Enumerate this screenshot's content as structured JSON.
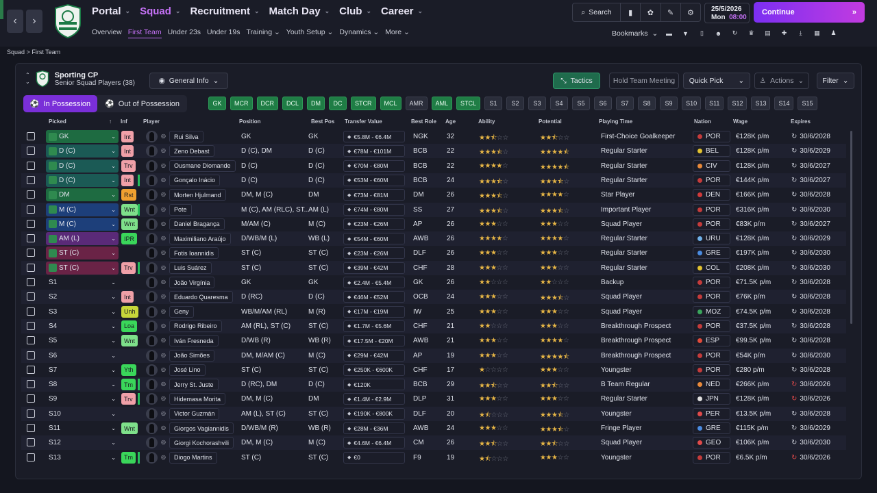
{
  "topnav": {
    "back": "‹",
    "forward": "›",
    "items": [
      {
        "label": "Portal"
      },
      {
        "label": "Squad"
      },
      {
        "label": "Recruitment"
      },
      {
        "label": "Match Day"
      },
      {
        "label": "Club"
      },
      {
        "label": "Career"
      }
    ],
    "subitems": [
      "Overview",
      "First Team",
      "Under 23s",
      "Under 19s",
      "Training",
      "Youth Setup",
      "Dynamics",
      "More"
    ],
    "search_label": "Search",
    "date": "25/5/2026",
    "day": "Mon",
    "time": "08:00",
    "continue_label": "Continue",
    "bookmarks_label": "Bookmarks"
  },
  "breadcrumb": {
    "a": "Squad",
    "sep": ">",
    "b": "First Team"
  },
  "panel": {
    "club_name": "Sporting CP",
    "subtitle": "Senior Squad Players (38)",
    "view_label": "General Info",
    "tactics_label": "Tactics",
    "meeting_label": "Hold Team Meeting",
    "quickpick_label": "Quick Pick",
    "actions_label": "Actions",
    "filter_label": "Filter",
    "in_possession": "In Possession",
    "out_possession": "Out of Possession",
    "position_chips": [
      {
        "label": "GK",
        "filled": true
      },
      {
        "label": "MCR",
        "filled": true
      },
      {
        "label": "DCR",
        "filled": true
      },
      {
        "label": "DCL",
        "filled": true
      },
      {
        "label": "DM",
        "filled": true
      },
      {
        "label": "DC",
        "filled": true
      },
      {
        "label": "STCR",
        "filled": true
      },
      {
        "label": "MCL",
        "filled": true
      },
      {
        "label": "AMR",
        "filled": false
      },
      {
        "label": "AML",
        "filled": true
      },
      {
        "label": "STCL",
        "filled": true
      },
      {
        "label": "S1",
        "filled": false
      },
      {
        "label": "S2",
        "filled": false
      },
      {
        "label": "S3",
        "filled": false
      },
      {
        "label": "S4",
        "filled": false
      },
      {
        "label": "S5",
        "filled": false
      },
      {
        "label": "S6",
        "filled": false
      },
      {
        "label": "S7",
        "filled": false
      },
      {
        "label": "S8",
        "filled": false
      },
      {
        "label": "S9",
        "filled": false
      },
      {
        "label": "S10",
        "filled": false
      },
      {
        "label": "S11",
        "filled": false
      },
      {
        "label": "S12",
        "filled": false
      },
      {
        "label": "S13",
        "filled": false
      },
      {
        "label": "S14",
        "filled": false
      },
      {
        "label": "S15",
        "filled": false
      }
    ]
  },
  "columns": {
    "picked": "Picked",
    "inf": "Inf",
    "player": "Player",
    "position": "Position",
    "best_pos": "Best Pos",
    "transfer_value": "Transfer Value",
    "best_role": "Best Role",
    "age": "Age",
    "ability": "Ability",
    "potential": "Potential",
    "playing_time": "Playing Time",
    "nation": "Nation",
    "wage": "Wage",
    "expires": "Expires"
  },
  "colors": {
    "accent": "#c471f5",
    "green": "#1f7d45",
    "purple": "#7a2fd8"
  },
  "players": [
    {
      "picked": "GK",
      "sel": "green",
      "inf": "Int",
      "inf_color": "#f0a0a8",
      "bar": false,
      "name": "Rui Silva",
      "position": "GK",
      "best_pos": "GK",
      "value": "€5.8M - €6.4M",
      "role": "NGK",
      "age": "32",
      "ability": 2.5,
      "potential": 2.5,
      "time": "First-Choice Goalkeeper",
      "nation": "POR",
      "nat_color": "#c43b3b",
      "wage": "€128K p/m",
      "expires": "30/6/2028",
      "exp_red": false
    },
    {
      "picked": "D (C)",
      "sel": "teal",
      "inf": "Int",
      "inf_color": "#f0a0a8",
      "bar": false,
      "name": "Zeno Debast",
      "position": "D (C), DM",
      "best_pos": "D (C)",
      "value": "€78M - €101M",
      "role": "BCB",
      "age": "22",
      "ability": 3.5,
      "potential": 4.5,
      "time": "Regular Starter",
      "nation": "BEL",
      "nat_color": "#e2c230",
      "wage": "€128K p/m",
      "expires": "30/6/2029",
      "exp_red": false
    },
    {
      "picked": "D (C)",
      "sel": "teal",
      "inf": "Trv",
      "inf_color": "#f0a0a8",
      "bar": false,
      "name": "Ousmane Diomande",
      "position": "D (C)",
      "best_pos": "D (C)",
      "value": "€70M - €80M",
      "role": "BCB",
      "age": "22",
      "ability": 4,
      "potential": 4.5,
      "time": "Regular Starter",
      "nation": "CIV",
      "nat_color": "#e8893a",
      "wage": "€128K p/m",
      "expires": "30/6/2027",
      "exp_red": false
    },
    {
      "picked": "D (C)",
      "sel": "teal",
      "inf": "Int",
      "inf_color": "#f0a0a8",
      "bar": true,
      "name": "Gonçalo Inácio",
      "position": "D (C)",
      "best_pos": "D (C)",
      "value": "€53M - €60M",
      "role": "BCB",
      "age": "24",
      "ability": 3.5,
      "potential": 3.5,
      "time": "Regular Starter",
      "nation": "POR",
      "nat_color": "#c43b3b",
      "wage": "€144K p/m",
      "expires": "30/6/2027",
      "exp_red": false
    },
    {
      "picked": "DM",
      "sel": "green",
      "inf": "Rst",
      "inf_color": "#f0a030",
      "bar": false,
      "name": "Morten Hjulmand",
      "position": "DM, M (C)",
      "best_pos": "DM",
      "value": "€73M - €81M",
      "role": "DM",
      "age": "26",
      "ability": 3.5,
      "potential": 4,
      "time": "Star Player",
      "nation": "DEN",
      "nat_color": "#d13a3a",
      "wage": "€166K p/m",
      "expires": "30/6/2028",
      "exp_red": false
    },
    {
      "picked": "M (C)",
      "sel": "blue",
      "inf": "Wnt",
      "inf_color": "#7ee08a",
      "bar": true,
      "name": "Pote",
      "position": "M (C), AM (RLC), ST...",
      "best_pos": "AM (L)",
      "value": "€74M - €80M",
      "role": "SS",
      "age": "27",
      "ability": 3.5,
      "potential": 3.5,
      "time": "Important Player",
      "nation": "POR",
      "nat_color": "#c43b3b",
      "wage": "€316K p/m",
      "expires": "30/6/2030",
      "exp_red": false
    },
    {
      "picked": "M (C)",
      "sel": "blue",
      "inf": "Wnt",
      "inf_color": "#7ee08a",
      "bar": false,
      "name": "Daniel Bragança",
      "position": "M/AM (C)",
      "best_pos": "M (C)",
      "value": "€23M - €26M",
      "role": "AP",
      "age": "26",
      "ability": 3,
      "potential": 3,
      "time": "Squad Player",
      "nation": "POR",
      "nat_color": "#c43b3b",
      "wage": "€83K p/m",
      "expires": "30/6/2027",
      "exp_red": false
    },
    {
      "picked": "AM (L)",
      "sel": "purple",
      "inf": "IPR",
      "inf_color": "#3ad65a",
      "bar": false,
      "name": "Maximiliano Araújo",
      "position": "D/WB/M (L)",
      "best_pos": "WB (L)",
      "value": "€54M - €60M",
      "role": "AWB",
      "age": "26",
      "ability": 4,
      "potential": 4,
      "time": "Regular Starter",
      "nation": "URU",
      "nat_color": "#6fb0e8",
      "wage": "€128K p/m",
      "expires": "30/6/2029",
      "exp_red": false
    },
    {
      "picked": "ST (C)",
      "sel": "red",
      "inf": "",
      "inf_color": "",
      "bar": false,
      "name": "Fotis Ioannidis",
      "position": "ST (C)",
      "best_pos": "ST (C)",
      "value": "€23M - €26M",
      "role": "DLF",
      "age": "26",
      "ability": 3,
      "potential": 3,
      "time": "Regular Starter",
      "nation": "GRE",
      "nat_color": "#4a8be0",
      "wage": "€197K p/m",
      "expires": "30/6/2030",
      "exp_red": false
    },
    {
      "picked": "ST (C)",
      "sel": "red",
      "inf": "Trv",
      "inf_color": "#f0a0a8",
      "bar": true,
      "name": "Luis Suárez",
      "position": "ST (C)",
      "best_pos": "ST (C)",
      "value": "€39M - €42M",
      "role": "CHF",
      "age": "28",
      "ability": 3,
      "potential": 3,
      "time": "Regular Starter",
      "nation": "COL",
      "nat_color": "#e2c230",
      "wage": "€208K p/m",
      "expires": "30/6/2030",
      "exp_red": false
    },
    {
      "picked": "S1",
      "sel": "none",
      "inf": "",
      "inf_color": "",
      "bar": false,
      "name": "João Virgínia",
      "position": "GK",
      "best_pos": "GK",
      "value": "€2.4M - €5.4M",
      "role": "GK",
      "age": "26",
      "ability": 2,
      "potential": 2,
      "time": "Backup",
      "nation": "POR",
      "nat_color": "#c43b3b",
      "wage": "€71.5K p/m",
      "expires": "30/6/2028",
      "exp_red": false
    },
    {
      "picked": "S2",
      "sel": "none",
      "inf": "Int",
      "inf_color": "#f0a0a8",
      "bar": false,
      "name": "Eduardo Quaresma",
      "position": "D (RC)",
      "best_pos": "D (C)",
      "value": "€46M - €52M",
      "role": "OCB",
      "age": "24",
      "ability": 3,
      "potential": 3.5,
      "time": "Squad Player",
      "nation": "POR",
      "nat_color": "#c43b3b",
      "wage": "€76K p/m",
      "expires": "30/6/2028",
      "exp_red": false
    },
    {
      "picked": "S3",
      "sel": "none",
      "inf": "Unh",
      "inf_color": "#c7d63a",
      "bar": false,
      "name": "Geny",
      "position": "WB/M/AM (RL)",
      "best_pos": "M (R)",
      "value": "€17M - €19M",
      "role": "IW",
      "age": "25",
      "ability": 3,
      "potential": 3,
      "time": "Squad Player",
      "nation": "MOZ",
      "nat_color": "#3aa55c",
      "wage": "€74.5K p/m",
      "expires": "30/6/2028",
      "exp_red": false
    },
    {
      "picked": "S4",
      "sel": "none",
      "inf": "Loa",
      "inf_color": "#3ad65a",
      "bar": false,
      "name": "Rodrigo Ribeiro",
      "position": "AM (RL), ST (C)",
      "best_pos": "ST (C)",
      "value": "€1.7M - €5.6M",
      "role": "CHF",
      "age": "21",
      "ability": 2,
      "potential": 3,
      "time": "Breakthrough Prospect",
      "nation": "POR",
      "nat_color": "#c43b3b",
      "wage": "€37.5K p/m",
      "expires": "30/6/2028",
      "exp_red": false
    },
    {
      "picked": "S5",
      "sel": "none",
      "inf": "Wnt",
      "inf_color": "#7ee08a",
      "bar": false,
      "name": "Iván Fresneda",
      "position": "D/WB (R)",
      "best_pos": "WB (R)",
      "value": "€17.5M - €20M",
      "role": "AWB",
      "age": "21",
      "ability": 3,
      "potential": 4,
      "time": "Breakthrough Prospect",
      "nation": "ESP",
      "nat_color": "#e04a3a",
      "wage": "€99.5K p/m",
      "expires": "30/6/2028",
      "exp_red": false
    },
    {
      "picked": "S6",
      "sel": "none",
      "inf": "",
      "inf_color": "",
      "bar": false,
      "name": "João Simões",
      "position": "DM, M/AM (C)",
      "best_pos": "M (C)",
      "value": "€29M - €42M",
      "role": "AP",
      "age": "19",
      "ability": 3,
      "potential": 4.5,
      "time": "Breakthrough Prospect",
      "nation": "POR",
      "nat_color": "#c43b3b",
      "wage": "€54K p/m",
      "expires": "30/6/2030",
      "exp_red": false
    },
    {
      "picked": "S7",
      "sel": "none",
      "inf": "Yth",
      "inf_color": "#3ad65a",
      "bar": false,
      "name": "José Lino",
      "position": "ST (C)",
      "best_pos": "ST (C)",
      "value": "€250K - €600K",
      "role": "CHF",
      "age": "17",
      "ability": 1,
      "potential": 3,
      "time": "Youngster",
      "nation": "POR",
      "nat_color": "#c43b3b",
      "wage": "€280 p/m",
      "expires": "30/6/2028",
      "exp_red": false
    },
    {
      "picked": "S8",
      "sel": "none",
      "inf": "Tm",
      "inf_color": "#3ad65a",
      "bar": true,
      "name": "Jerry St. Juste",
      "position": "D (RC), DM",
      "best_pos": "D (C)",
      "value": "€120K",
      "role": "BCB",
      "age": "29",
      "ability": 2.5,
      "potential": 2.5,
      "time": "B Team Regular",
      "nation": "NED",
      "nat_color": "#e8893a",
      "wage": "€266K p/m",
      "expires": "30/6/2026",
      "exp_red": true
    },
    {
      "picked": "S9",
      "sel": "none",
      "inf": "Trv",
      "inf_color": "#f0a0a8",
      "bar": true,
      "name": "Hidemasa Morita",
      "position": "DM, M (C)",
      "best_pos": "DM",
      "value": "€1.4M - €2.9M",
      "role": "DLP",
      "age": "31",
      "ability": 3,
      "potential": 3,
      "time": "Regular Starter",
      "nation": "JPN",
      "nat_color": "#e0e0e0",
      "wage": "€128K p/m",
      "expires": "30/6/2026",
      "exp_red": true
    },
    {
      "picked": "S10",
      "sel": "none",
      "inf": "",
      "inf_color": "",
      "bar": false,
      "name": "Victor Guzmán",
      "position": "AM (L), ST (C)",
      "best_pos": "ST (C)",
      "value": "€190K - €800K",
      "role": "DLF",
      "age": "20",
      "ability": 1.5,
      "potential": 3.5,
      "time": "Youngster",
      "nation": "PER",
      "nat_color": "#e04a4a",
      "wage": "€13.5K p/m",
      "expires": "30/6/2028",
      "exp_red": false
    },
    {
      "picked": "S11",
      "sel": "none",
      "inf": "Wnt",
      "inf_color": "#7ee08a",
      "bar": false,
      "name": "Giorgos Vagiannidis",
      "position": "D/WB/M (R)",
      "best_pos": "WB (R)",
      "value": "€28M - €36M",
      "role": "AWB",
      "age": "24",
      "ability": 3,
      "potential": 3.5,
      "time": "Fringe Player",
      "nation": "GRE",
      "nat_color": "#4a8be0",
      "wage": "€115K p/m",
      "expires": "30/6/2029",
      "exp_red": false
    },
    {
      "picked": "S12",
      "sel": "none",
      "inf": "",
      "inf_color": "",
      "bar": false,
      "name": "Giorgi Kochorashvili",
      "position": "DM, M (C)",
      "best_pos": "M (C)",
      "value": "€4.6M - €6.4M",
      "role": "CM",
      "age": "26",
      "ability": 2.5,
      "potential": 2.5,
      "time": "Squad Player",
      "nation": "GEO",
      "nat_color": "#e04a4a",
      "wage": "€106K p/m",
      "expires": "30/6/2030",
      "exp_red": false
    },
    {
      "picked": "S13",
      "sel": "none",
      "inf": "Tm",
      "inf_color": "#3ad65a",
      "bar": true,
      "name": "Diogo Martins",
      "position": "ST (C)",
      "best_pos": "ST (C)",
      "value": "€0",
      "role": "F9",
      "age": "19",
      "ability": 1.5,
      "potential": 3,
      "time": "Youngster",
      "nation": "POR",
      "nat_color": "#c43b3b",
      "wage": "€6.5K p/m",
      "expires": "30/6/2026",
      "exp_red": true
    }
  ]
}
